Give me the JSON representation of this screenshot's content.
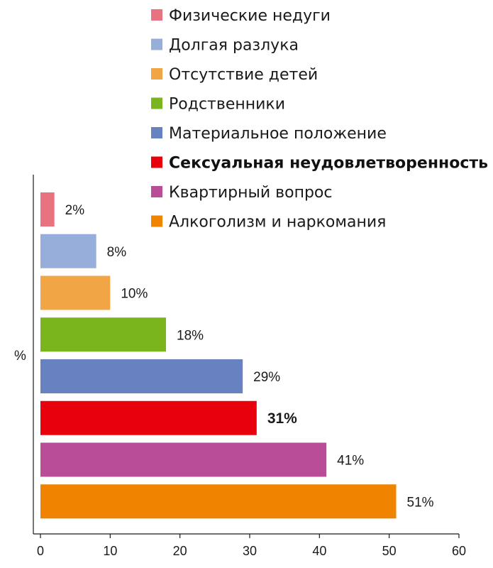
{
  "chart_data": {
    "type": "bar",
    "orientation": "horizontal",
    "ylabel": "%",
    "xlabel": "",
    "xlim": [
      0,
      60
    ],
    "x_ticks": [
      0,
      10,
      20,
      30,
      40,
      50,
      60
    ],
    "grid": false,
    "legend_position": "top-right",
    "categories": [
      "Физические недуги",
      "Долгая разлука",
      "Отсутствие детей",
      "Родственники",
      "Материальное положение",
      "Сексуальная неудовлетворенность",
      "Квартирный вопрос",
      "Алкоголизм и наркомания"
    ],
    "values": [
      2,
      8,
      10,
      18,
      29,
      31,
      41,
      51
    ],
    "value_labels": [
      "2%",
      "8%",
      "10%",
      "18%",
      "29%",
      "31%",
      "41%",
      "51%"
    ],
    "colors": [
      "#e8727f",
      "#97aedb",
      "#f2a544",
      "#7ab51d",
      "#6781c1",
      "#e8000d",
      "#b94d98",
      "#f08300"
    ],
    "highlighted": [
      false,
      false,
      false,
      false,
      false,
      true,
      false,
      false
    ]
  }
}
